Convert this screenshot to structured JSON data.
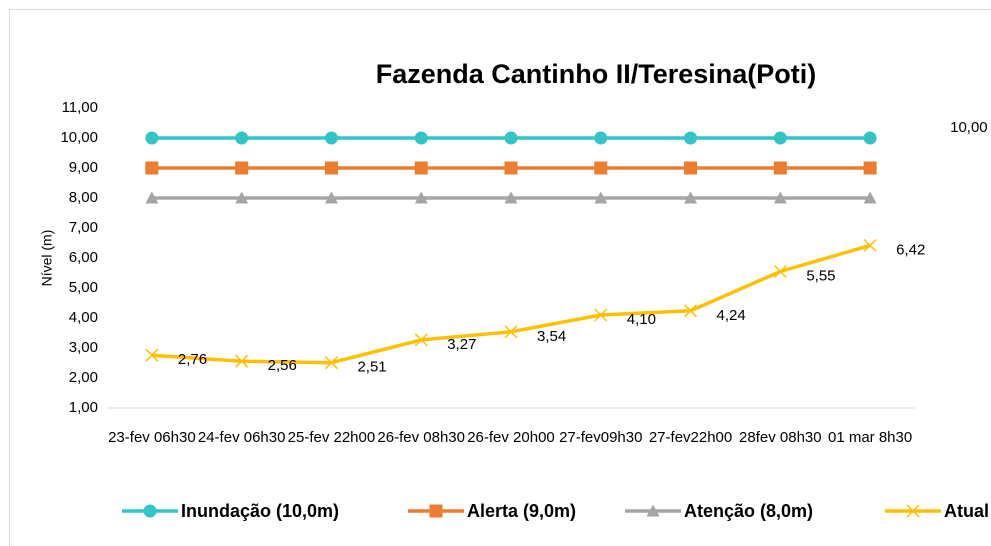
{
  "chart_data": {
    "type": "line",
    "title": "Fazenda Cantinho II/Teresina(Poti)",
    "y_label": "Nível (m)",
    "categories": [
      "23-fev 06h30",
      "24-fev 06h30",
      "25-fev 22h00",
      "26-fev 08h30",
      "26-fev 20h00",
      "27-fev09h30",
      "27-fev22h00",
      "28fev 08h30",
      "01 mar 8h30"
    ],
    "series": [
      {
        "name": "Inundação (10,0m)",
        "color": "#33c5c5",
        "marker": "circle",
        "values": [
          10,
          10,
          10,
          10,
          10,
          10,
          10,
          10,
          10
        ],
        "value_labels": [
          null,
          null,
          null,
          null,
          null,
          null,
          null,
          null,
          "10,00"
        ]
      },
      {
        "name": "Alerta (9,0m)",
        "color": "#ed7d31",
        "marker": "square",
        "values": [
          9,
          9,
          9,
          9,
          9,
          9,
          9,
          9,
          9
        ]
      },
      {
        "name": "Atenção (8,0m)",
        "color": "#a5a5a5",
        "marker": "triangle",
        "values": [
          8,
          8,
          8,
          8,
          8,
          8,
          8,
          8,
          8
        ]
      },
      {
        "name": "Atual",
        "color": "#ffc000",
        "marker": "x",
        "values": [
          2.76,
          2.56,
          2.51,
          3.27,
          3.54,
          4.1,
          4.24,
          5.55,
          6.42
        ],
        "value_labels": [
          "2,76",
          "2,56",
          "2,51",
          "3,27",
          "3,54",
          "4,10",
          "4,24",
          "5,55",
          "6,42"
        ]
      }
    ],
    "ylim": [
      1,
      11
    ],
    "yticks": [
      {
        "value": 1,
        "label": "1,00"
      },
      {
        "value": 2,
        "label": "2,00"
      },
      {
        "value": 3,
        "label": "3,00"
      },
      {
        "value": 4,
        "label": "4,00"
      },
      {
        "value": 5,
        "label": "5,00"
      },
      {
        "value": 6,
        "label": "6,00"
      },
      {
        "value": 7,
        "label": "7,00"
      },
      {
        "value": 8,
        "label": "8,00"
      },
      {
        "value": 9,
        "label": "9,00"
      },
      {
        "value": 10,
        "label": "10,00"
      },
      {
        "value": 11,
        "label": "11,00"
      }
    ],
    "grid": false,
    "legend": "bottom"
  }
}
